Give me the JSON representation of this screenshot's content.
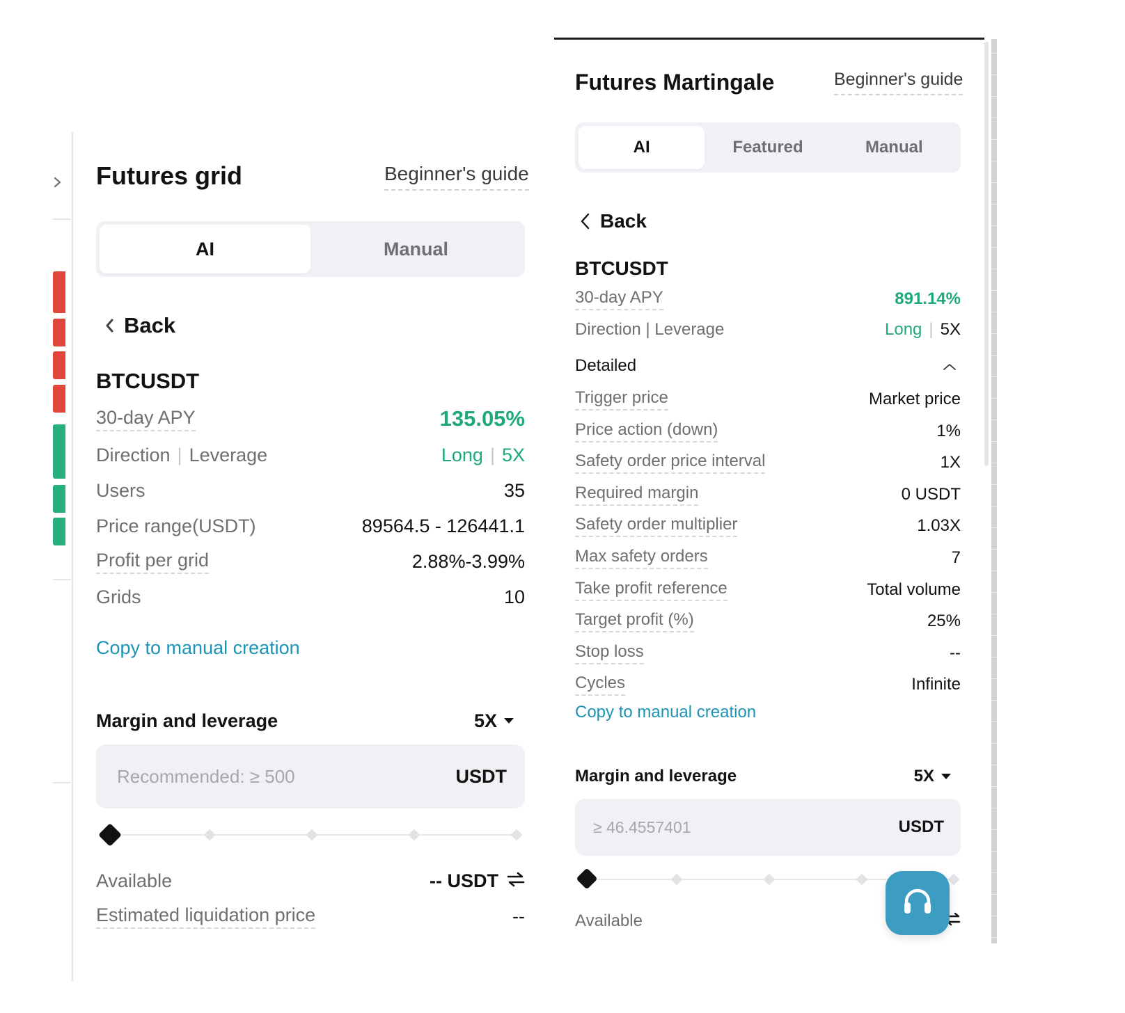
{
  "left_panel": {
    "title": "Futures grid",
    "guide": "Beginner's guide",
    "tabs": [
      {
        "label": "AI",
        "active": true
      },
      {
        "label": "Manual",
        "active": false
      }
    ],
    "back": "Back",
    "symbol": "BTCUSDT",
    "apy": {
      "label": "30-day APY",
      "value": "135.05%"
    },
    "direction_label": "Direction",
    "leverage_label": "Leverage",
    "direction_value": "Long",
    "leverage_value": "5X",
    "rows": [
      {
        "label": "Users",
        "value": "35"
      },
      {
        "label": "Price range(USDT)",
        "value": "89564.5 - 126441.1"
      },
      {
        "label": "Profit per grid",
        "value": "2.88%-3.99%"
      },
      {
        "label": "Grids",
        "value": "10"
      }
    ],
    "copy_link": "Copy to manual creation",
    "margin": {
      "label": "Margin and leverage",
      "leverage": "5X",
      "placeholder": "Recommended: ≥ 500",
      "unit": "USDT",
      "slider_value": 0
    },
    "available": {
      "label": "Available",
      "value": "-- USDT"
    },
    "liquidation": {
      "label": "Estimated liquidation price",
      "value": "--"
    }
  },
  "right_panel": {
    "title": "Futures Martingale",
    "guide": "Beginner's guide",
    "tabs": [
      {
        "label": "AI",
        "active": true
      },
      {
        "label": "Featured",
        "active": false
      },
      {
        "label": "Manual",
        "active": false
      }
    ],
    "back": "Back",
    "symbol": "BTCUSDT",
    "apy": {
      "label": "30-day APY",
      "value": "891.14%"
    },
    "direction_leverage_label": "Direction | Leverage",
    "direction_value": "Long",
    "leverage_value": "5X",
    "detailed_label": "Detailed",
    "rows": [
      {
        "label": "Trigger price",
        "value": "Market price"
      },
      {
        "label": "Price action (down)",
        "value": "1%"
      },
      {
        "label": "Safety order price interval",
        "value": "1X"
      },
      {
        "label": "Required margin",
        "value": "0 USDT"
      },
      {
        "label": "Safety order multiplier",
        "value": "1.03X"
      },
      {
        "label": "Max safety orders",
        "value": "7"
      },
      {
        "label": "Take profit reference",
        "value": "Total volume"
      },
      {
        "label": "Target profit (%)",
        "value": "25%"
      },
      {
        "label": "Stop loss",
        "value": "--"
      },
      {
        "label": "Cycles",
        "value": "Infinite"
      }
    ],
    "copy_link": "Copy to manual creation",
    "margin": {
      "label": "Margin and leverage",
      "leverage": "5X",
      "placeholder": "≥ 46.4557401",
      "unit": "USDT",
      "slider_value": 0
    },
    "available": {
      "label": "Available",
      "value": "--"
    }
  },
  "support": {
    "icon": "headset-icon"
  },
  "colors": {
    "accent_green": "#1fa979",
    "link_blue": "#1e93b8",
    "support_blue": "#3d9cc2",
    "down_red": "#e0473a",
    "up_green": "#27b07c"
  }
}
